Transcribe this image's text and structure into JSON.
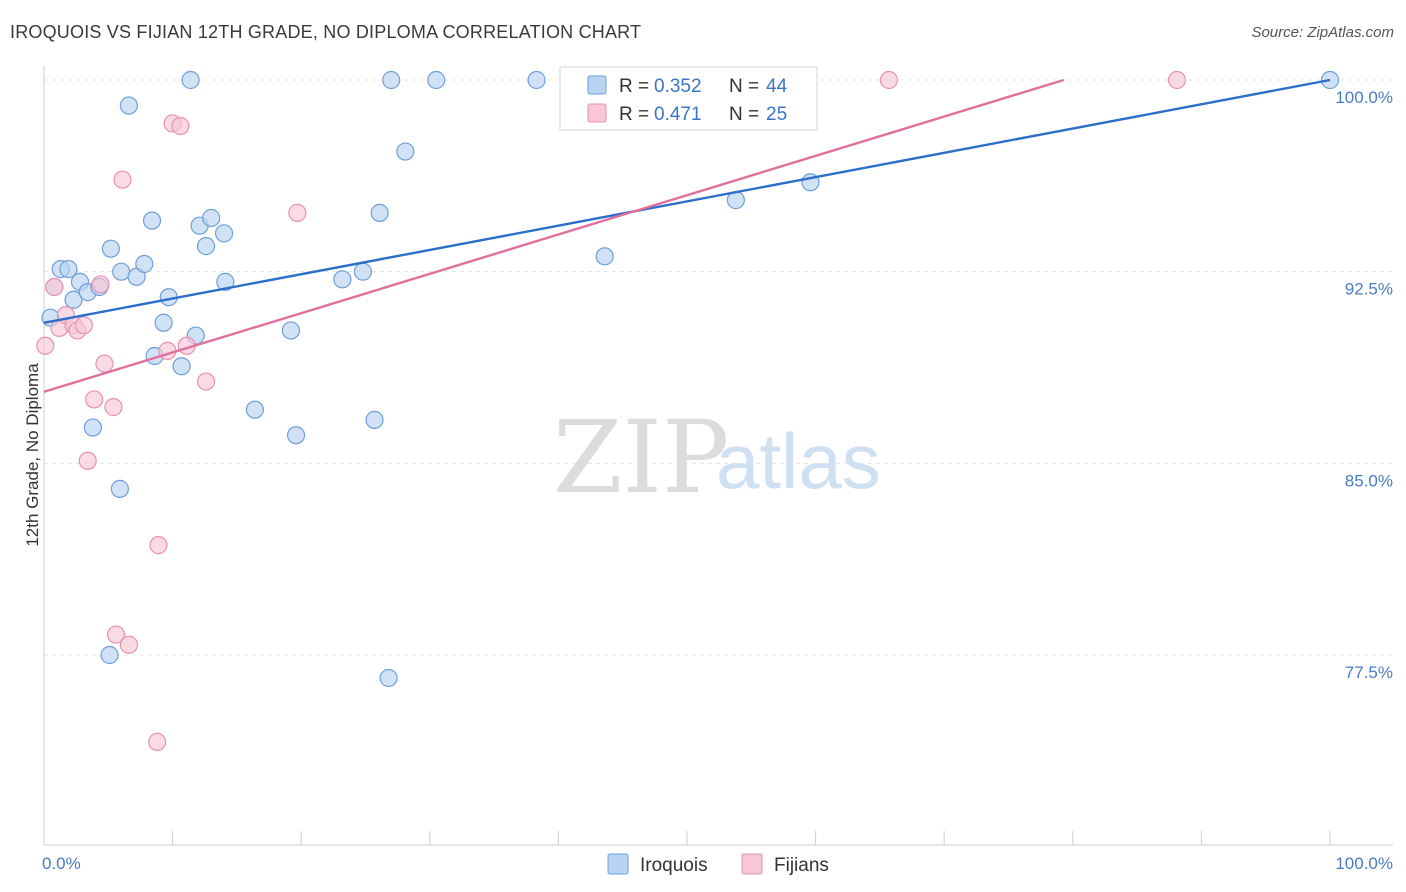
{
  "title": "IROQUOIS VS FIJIAN 12TH GRADE, NO DIPLOMA CORRELATION CHART",
  "source": "Source: ZipAtlas.com",
  "watermark": {
    "zip": "ZIP",
    "atlas": "atlas"
  },
  "colors": {
    "iroquois_fill": "#b9d3f3",
    "iroquois_stroke": "#6e9fd8",
    "iroquois_line": "#2b6fcb",
    "fijians_fill": "#f8c6d6",
    "fijians_stroke": "#e892ae",
    "fijians_line": "#e0709a",
    "grid": "#e4e4e4",
    "tick_label": "#4a7cc4"
  },
  "chart_data": {
    "type": "scatter",
    "title": "IROQUOIS VS FIJIAN 12TH GRADE, NO DIPLOMA CORRELATION CHART",
    "xlabel": "",
    "ylabel": "12th Grade, No Diploma",
    "xlim": [
      0,
      100
    ],
    "ylim": [
      70.5,
      101.2
    ],
    "x_tick_labels": [
      {
        "value": 0,
        "label": "0.0%"
      },
      {
        "value": 100,
        "label": "100.0%"
      }
    ],
    "y_ticks": [
      {
        "value": 100.0,
        "label": "100.0%"
      },
      {
        "value": 92.5,
        "label": "92.5%"
      },
      {
        "value": 85.0,
        "label": "85.0%"
      },
      {
        "value": 77.5,
        "label": "77.5%"
      }
    ],
    "legend": [
      {
        "name": "Iroquois",
        "r_label": "R =",
        "r": "0.352",
        "n_label": "N =",
        "n": "44"
      },
      {
        "name": "Fijians",
        "r_label": "R =",
        "r": "0.471",
        "n_label": "N =",
        "n": "25"
      }
    ],
    "series": [
      {
        "name": "Iroquois",
        "trend": {
          "x0": 0,
          "y0": 90.5,
          "x1": 100,
          "y1": 100.0
        },
        "points": [
          [
            0.5,
            90.7
          ],
          [
            0.8,
            91.9
          ],
          [
            1.3,
            92.6
          ],
          [
            1.9,
            92.6
          ],
          [
            2.3,
            91.4
          ],
          [
            2.8,
            92.1
          ],
          [
            3.4,
            91.7
          ],
          [
            3.8,
            86.4
          ],
          [
            4.3,
            91.9
          ],
          [
            5.2,
            93.4
          ],
          [
            5.9,
            84.0
          ],
          [
            6.0,
            92.5
          ],
          [
            6.6,
            99.0
          ],
          [
            7.2,
            92.3
          ],
          [
            7.8,
            92.8
          ],
          [
            8.4,
            94.5
          ],
          [
            8.6,
            89.2
          ],
          [
            9.3,
            90.5
          ],
          [
            9.7,
            91.5
          ],
          [
            10.7,
            88.8
          ],
          [
            11.4,
            100.0
          ],
          [
            11.8,
            90.0
          ],
          [
            12.1,
            94.3
          ],
          [
            12.6,
            93.5
          ],
          [
            13.0,
            94.6
          ],
          [
            14.0,
            94.0
          ],
          [
            14.1,
            92.1
          ],
          [
            16.4,
            87.1
          ],
          [
            19.2,
            90.2
          ],
          [
            19.6,
            86.1
          ],
          [
            23.2,
            92.2
          ],
          [
            24.8,
            92.5
          ],
          [
            25.7,
            86.7
          ],
          [
            26.1,
            94.8
          ],
          [
            26.8,
            76.6
          ],
          [
            27.0,
            100.0
          ],
          [
            28.1,
            97.2
          ],
          [
            30.5,
            100.0
          ],
          [
            38.3,
            100.0
          ],
          [
            43.6,
            93.1
          ],
          [
            53.8,
            95.3
          ],
          [
            59.6,
            96.0
          ],
          [
            100.0,
            100.0
          ],
          [
            5.1,
            77.5
          ]
        ]
      },
      {
        "name": "Fijians",
        "trend": {
          "x0": 0,
          "y0": 87.8,
          "x1": 79.3,
          "y1": 100.0
        },
        "points": [
          [
            0.1,
            89.6
          ],
          [
            0.8,
            91.9
          ],
          [
            1.2,
            90.3
          ],
          [
            1.7,
            90.8
          ],
          [
            2.3,
            90.4
          ],
          [
            2.6,
            90.2
          ],
          [
            3.1,
            90.4
          ],
          [
            3.4,
            85.1
          ],
          [
            3.9,
            87.5
          ],
          [
            4.4,
            92.0
          ],
          [
            4.7,
            88.9
          ],
          [
            5.4,
            87.2
          ],
          [
            5.6,
            78.3
          ],
          [
            6.1,
            96.1
          ],
          [
            6.6,
            77.9
          ],
          [
            8.8,
            74.1
          ],
          [
            8.9,
            81.8
          ],
          [
            9.6,
            89.4
          ],
          [
            10.0,
            98.3
          ],
          [
            10.6,
            98.2
          ],
          [
            11.1,
            89.6
          ],
          [
            12.6,
            88.2
          ],
          [
            19.7,
            94.8
          ],
          [
            65.7,
            100.0
          ],
          [
            88.1,
            100.0
          ]
        ]
      }
    ]
  }
}
